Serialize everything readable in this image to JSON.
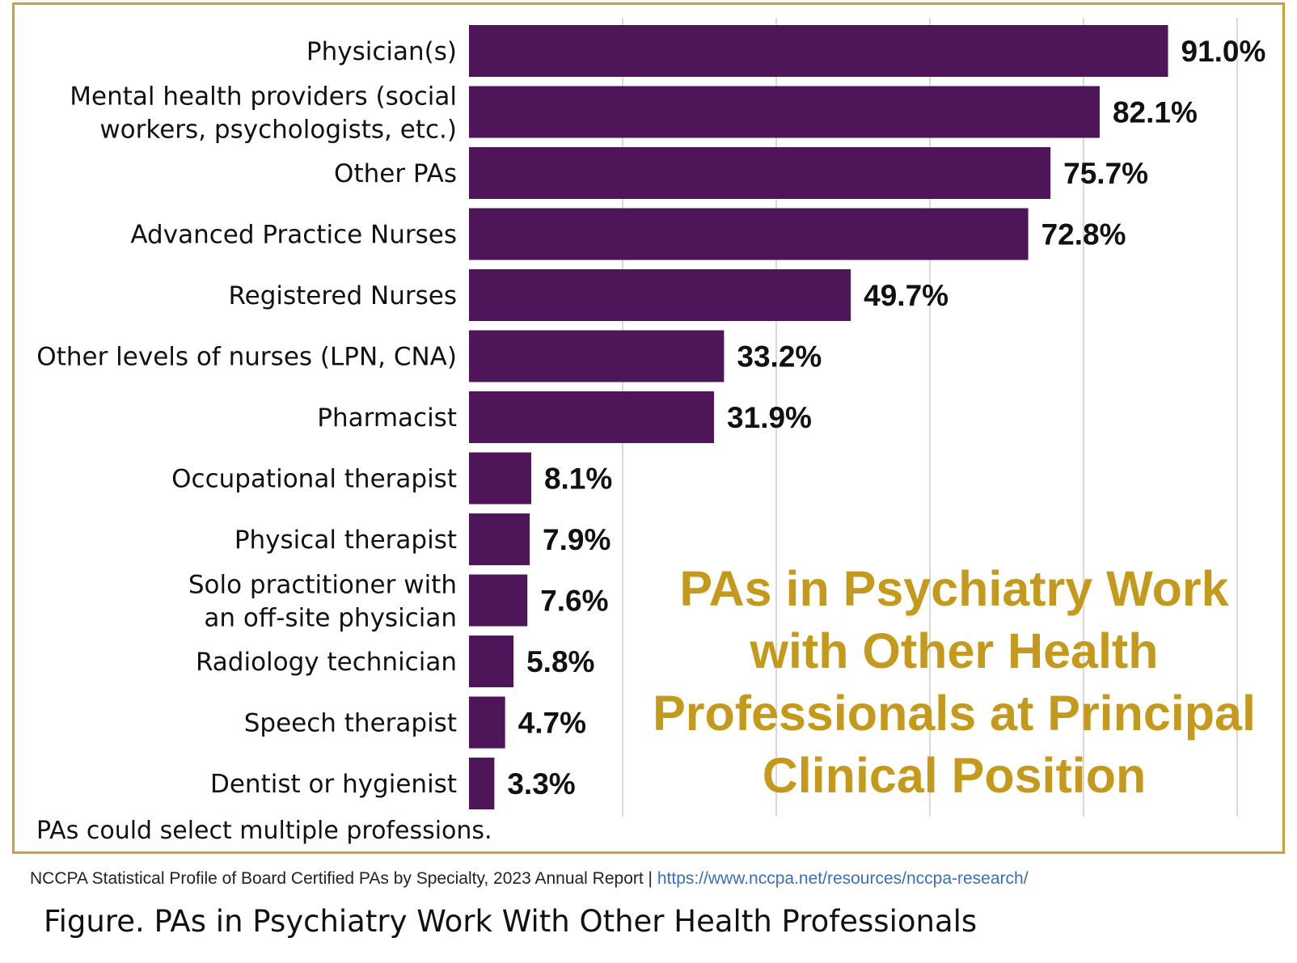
{
  "chart_data": {
    "type": "bar",
    "orientation": "horizontal",
    "categories": [
      [
        "Physician(s)"
      ],
      [
        "Mental health providers (social",
        "workers, psychologists, etc.)"
      ],
      [
        "Other PAs"
      ],
      [
        "Advanced Practice Nurses"
      ],
      [
        "Registered Nurses"
      ],
      [
        "Other levels of nurses (LPN, CNA)"
      ],
      [
        "Pharmacist"
      ],
      [
        "Occupational therapist"
      ],
      [
        "Physical therapist"
      ],
      [
        "Solo practitioner with",
        "an off-site physician"
      ],
      [
        "Radiology technician"
      ],
      [
        "Speech therapist"
      ],
      [
        "Dentist or hygienist"
      ]
    ],
    "values": [
      91.0,
      82.1,
      75.7,
      72.8,
      49.7,
      33.2,
      31.9,
      8.1,
      7.9,
      7.6,
      5.8,
      4.7,
      3.3
    ],
    "value_labels": [
      "91.0%",
      "82.1%",
      "75.7%",
      "72.8%",
      "49.7%",
      "33.2%",
      "31.9%",
      "8.1%",
      "7.9%",
      "7.6%",
      "5.8%",
      "4.7%",
      "3.3%"
    ],
    "xlim": [
      0,
      100
    ],
    "grid": "vertical",
    "bar_color": "#4e1558",
    "grid_color": "#d9d9d9",
    "title_lines": [
      "PAs in Psychiatry Work",
      "with Other Health",
      "Professionals at Principal",
      "Clinical Position"
    ],
    "title_color": "#c59a1c",
    "note": "PAs could select multiple professions."
  },
  "source": {
    "text": "NCCPA Statistical Profile of Board Certified PAs by Specialty, 2023 Annual Report | ",
    "link": "https://www.nccpa.net/resources/nccpa-research/"
  },
  "caption": "Figure. PAs in Psychiatry Work With Other Health Professionals",
  "colors": {
    "frame_border": "#c8a33a",
    "link": "#3b6fb5"
  }
}
